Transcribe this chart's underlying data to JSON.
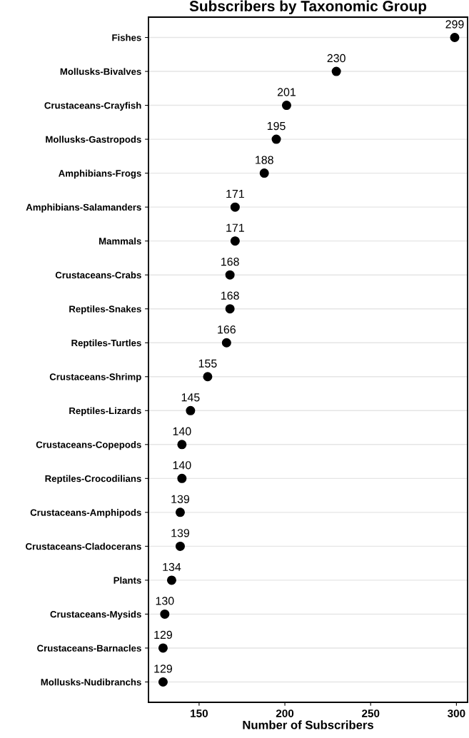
{
  "chart_data": {
    "type": "scatter",
    "title": "Subscribers by Taxonomic Group",
    "xlabel": "Number of Subscribers",
    "orientation": "horizontal",
    "categories": [
      "Fishes",
      "Mollusks-Bivalves",
      "Crustaceans-Crayfish",
      "Mollusks-Gastropods",
      "Amphibians-Frogs",
      "Amphibians-Salamanders",
      "Mammals",
      "Crustaceans-Crabs",
      "Reptiles-Snakes",
      "Reptiles-Turtles",
      "Crustaceans-Shrimp",
      "Reptiles-Lizards",
      "Crustaceans-Copepods",
      "Reptiles-Crocodilians",
      "Crustaceans-Amphipods",
      "Crustaceans-Cladocerans",
      "Plants",
      "Crustaceans-Mysids",
      "Crustaceans-Barnacles",
      "Mollusks-Nudibranchs"
    ],
    "values": [
      299,
      230,
      201,
      195,
      188,
      171,
      171,
      168,
      168,
      166,
      155,
      145,
      140,
      140,
      139,
      139,
      134,
      130,
      129,
      129
    ],
    "color": "#000000",
    "marker": "circle",
    "data_labels": true,
    "grid": "y",
    "xlim": [
      120.5,
      306.5
    ],
    "xticks": [
      150,
      200,
      250,
      300
    ]
  }
}
